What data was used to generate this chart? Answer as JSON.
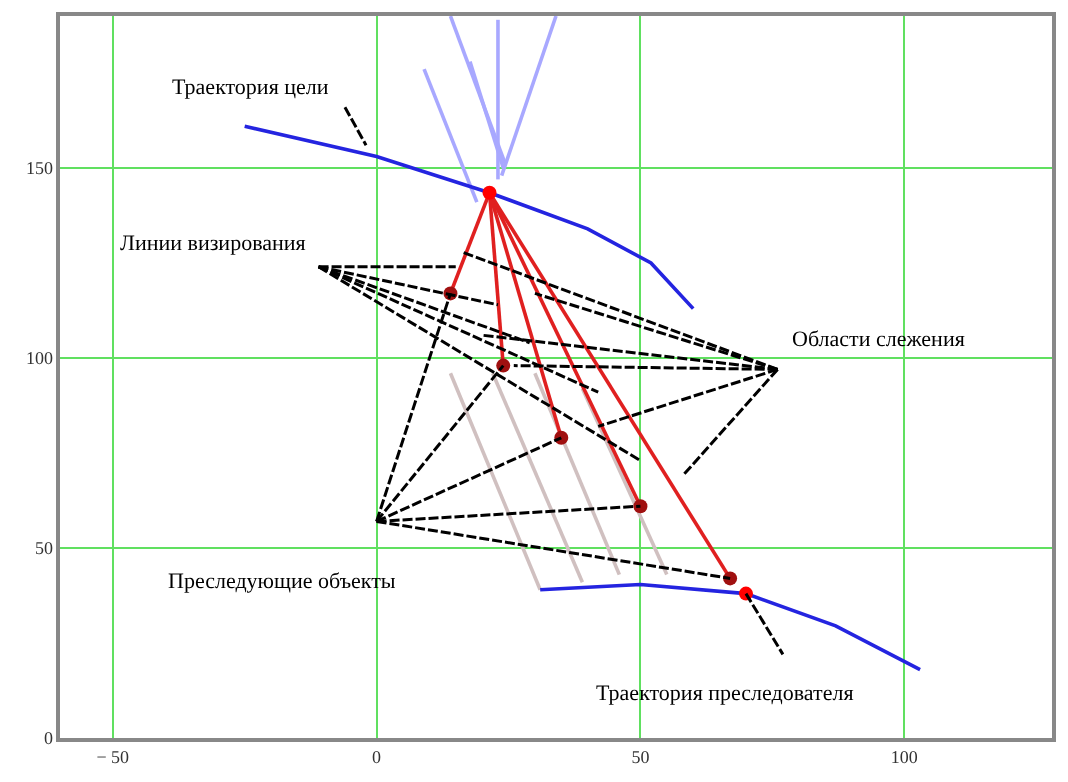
{
  "chart_data": {
    "type": "line",
    "xlim": [
      -60,
      128
    ],
    "ylim": [
      0,
      190
    ],
    "xticks": [
      -50,
      0,
      50,
      100
    ],
    "yticks": [
      0,
      50,
      100,
      150
    ],
    "grid": true,
    "annotations": [
      "Траектория цели",
      "Линии визирования",
      "Области слежения",
      "Преследующие объекты",
      "Траектория преследователя"
    ],
    "series": [
      {
        "color": "#a8a8ff",
        "x": [
          14,
          24.4
        ],
        "values": [
          190,
          151
        ]
      },
      {
        "color": "#a8a8ff",
        "x": [
          9,
          19
        ],
        "values": [
          176,
          141
        ]
      },
      {
        "color": "#a8a8ff",
        "x": [
          17.7,
          24
        ],
        "values": [
          178,
          150
        ]
      },
      {
        "color": "#a8a8ff",
        "x": [
          34,
          23.7
        ],
        "values": [
          190,
          148
        ]
      },
      {
        "color": "#a8a8ff",
        "x": [
          23,
          23
        ],
        "values": [
          189,
          147
        ]
      },
      {
        "color": "#d0c0c0",
        "x": [
          31,
          14
        ],
        "values": [
          39,
          96
        ]
      },
      {
        "color": "#d0c0c0",
        "x": [
          39,
          22
        ],
        "values": [
          41,
          96
        ]
      },
      {
        "color": "#d0c0c0",
        "x": [
          46,
          30
        ],
        "values": [
          43,
          96
        ]
      },
      {
        "color": "#d0c0c0",
        "x": [
          55,
          39
        ],
        "values": [
          43,
          92
        ]
      },
      {
        "color": "#2424e0",
        "x": [
          -25,
          0,
          21.4,
          40,
          52,
          60
        ],
        "values": [
          161,
          153,
          143.5,
          134,
          125,
          113
        ]
      },
      {
        "color": "#2424e0",
        "x": [
          31,
          50,
          70,
          87,
          103
        ],
        "values": [
          39,
          40.4,
          38,
          29.5,
          18
        ]
      },
      {
        "color": "#e02020",
        "x": [
          21.4,
          14
        ],
        "values": [
          143.5,
          117
        ]
      },
      {
        "color": "#e02020",
        "x": [
          21.4,
          24
        ],
        "values": [
          143.5,
          98
        ]
      },
      {
        "color": "#e02020",
        "x": [
          21.4,
          35
        ],
        "values": [
          143.5,
          79
        ]
      },
      {
        "color": "#e02020",
        "x": [
          21.4,
          50
        ],
        "values": [
          143.5,
          61
        ]
      },
      {
        "color": "#e02020",
        "x": [
          21.4,
          67
        ],
        "values": [
          143.5,
          42
        ]
      },
      {
        "type": "scatter",
        "marker": "circle",
        "color": "#a01010",
        "x": [
          14,
          24,
          35,
          50,
          67
        ],
        "values": [
          117,
          98,
          79,
          61,
          42
        ]
      },
      {
        "type": "scatter",
        "marker": "circle",
        "color": "#ff0000",
        "x": [
          21.4,
          70
        ],
        "values": [
          143.5,
          38
        ]
      },
      {
        "color": "#000000",
        "line_style": "dashed",
        "x": [
          -6,
          -2
        ],
        "values": [
          166,
          156
        ]
      },
      {
        "color": "#000000",
        "line_style": "dashed",
        "x": [
          -11,
          15
        ],
        "values": [
          124,
          124
        ]
      },
      {
        "color": "#000000",
        "line_style": "dashed",
        "x": [
          -11,
          23
        ],
        "values": [
          124,
          114
        ]
      },
      {
        "color": "#000000",
        "line_style": "dashed",
        "x": [
          -11,
          29
        ],
        "values": [
          124,
          104
        ]
      },
      {
        "color": "#000000",
        "line_style": "dashed",
        "x": [
          -11,
          42
        ],
        "values": [
          124,
          91
        ]
      },
      {
        "color": "#000000",
        "line_style": "dashed",
        "x": [
          -11,
          50
        ],
        "values": [
          124,
          73
        ]
      },
      {
        "color": "#000000",
        "line_style": "dashed",
        "x": [
          76,
          16
        ],
        "values": [
          97,
          128
        ]
      },
      {
        "color": "#000000",
        "line_style": "dashed",
        "x": [
          76,
          30
        ],
        "values": [
          97,
          117
        ]
      },
      {
        "color": "#000000",
        "line_style": "dashed",
        "x": [
          76,
          20
        ],
        "values": [
          97,
          106
        ]
      },
      {
        "color": "#000000",
        "line_style": "dashed",
        "x": [
          76,
          26
        ],
        "values": [
          97,
          98
        ]
      },
      {
        "color": "#000000",
        "line_style": "dashed",
        "x": [
          76,
          42
        ],
        "values": [
          97,
          82
        ]
      },
      {
        "color": "#000000",
        "line_style": "dashed",
        "x": [
          76,
          58
        ],
        "values": [
          97,
          69
        ]
      },
      {
        "color": "#000000",
        "line_style": "dashed",
        "x": [
          0,
          14
        ],
        "values": [
          57,
          117
        ]
      },
      {
        "color": "#000000",
        "line_style": "dashed",
        "x": [
          0,
          24
        ],
        "values": [
          57,
          98
        ]
      },
      {
        "color": "#000000",
        "line_style": "dashed",
        "x": [
          0,
          35
        ],
        "values": [
          57,
          79
        ]
      },
      {
        "color": "#000000",
        "line_style": "dashed",
        "x": [
          0,
          50
        ],
        "values": [
          57,
          61
        ]
      },
      {
        "color": "#000000",
        "line_style": "dashed",
        "x": [
          0,
          67
        ],
        "values": [
          57,
          42
        ]
      },
      {
        "color": "#000000",
        "line_style": "dashed",
        "x": [
          70,
          77
        ],
        "values": [
          38,
          22
        ]
      }
    ]
  }
}
